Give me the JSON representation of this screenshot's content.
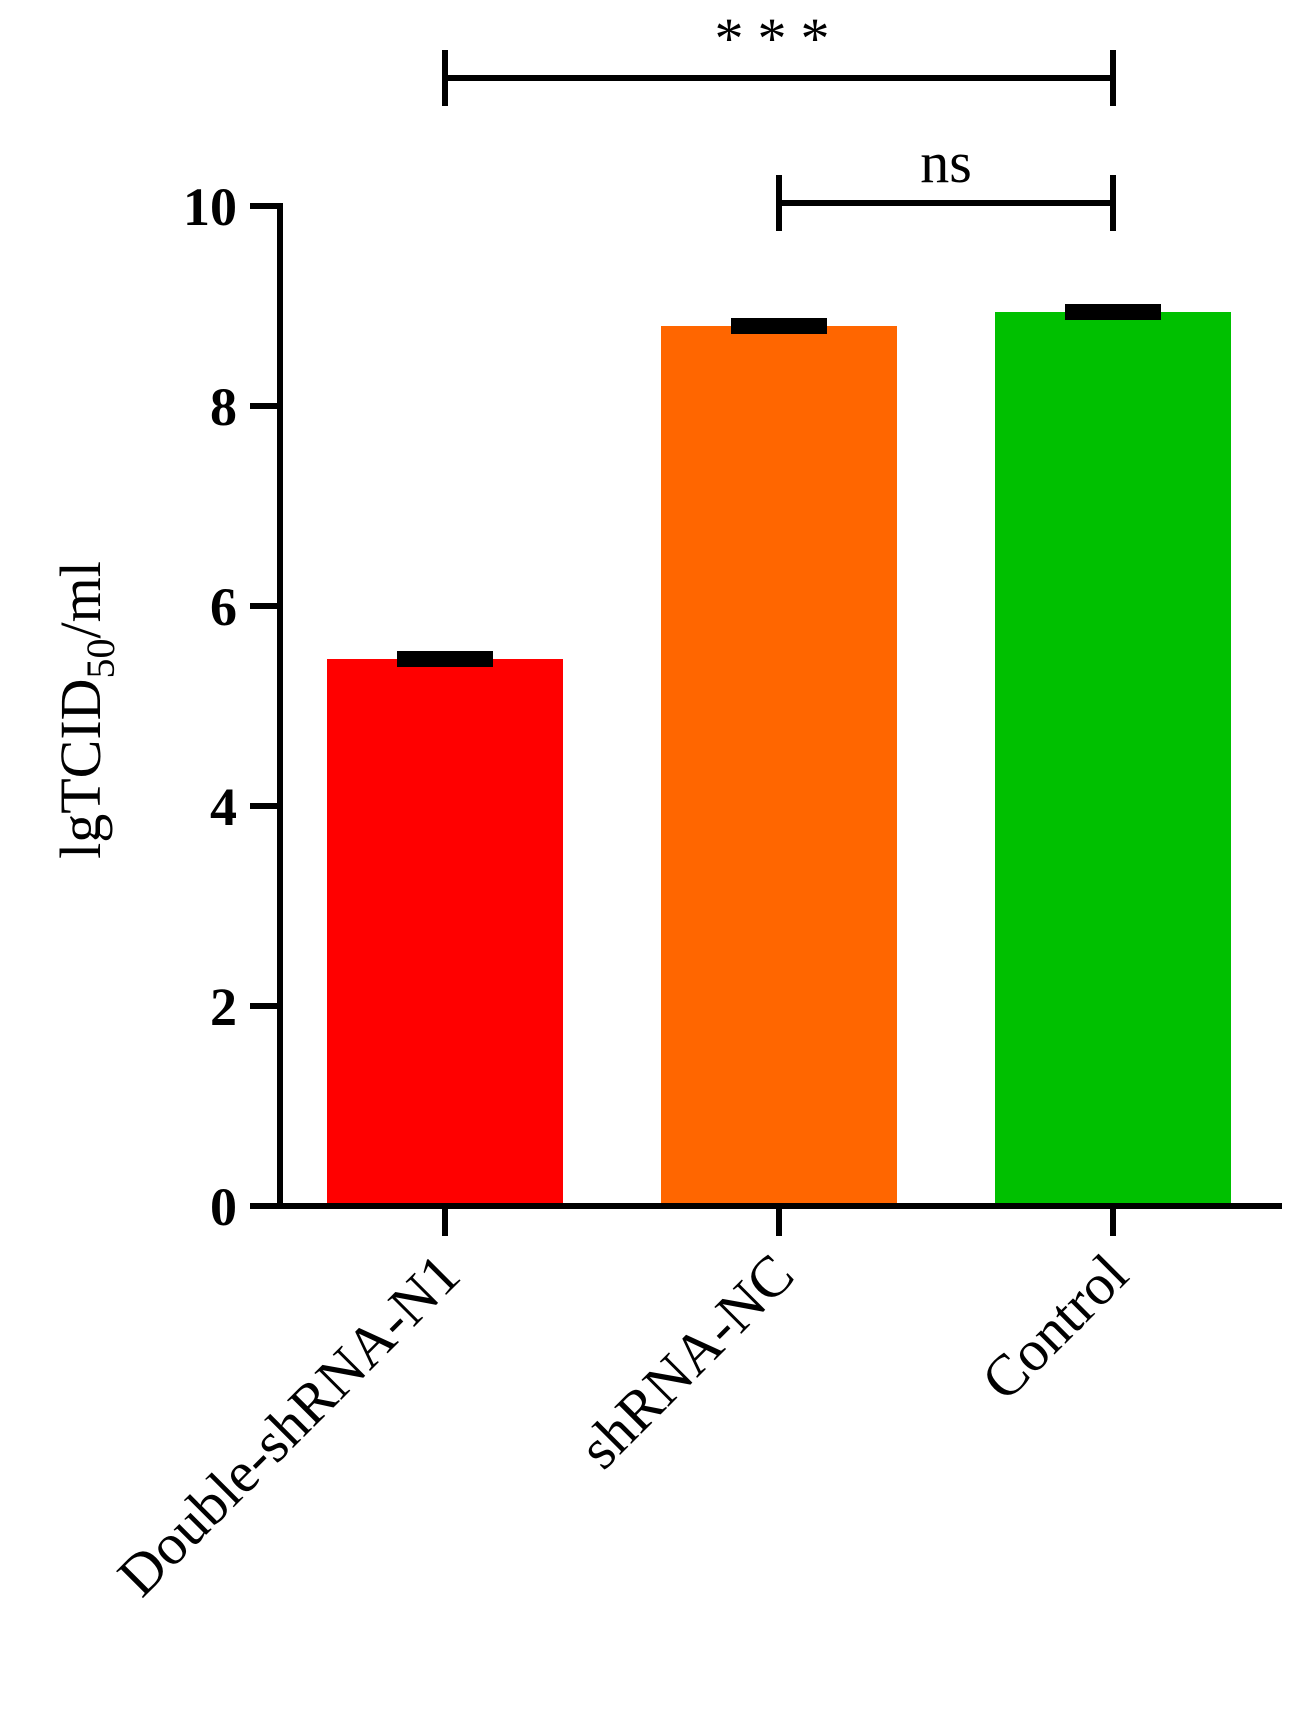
{
  "chart_data": {
    "type": "bar",
    "categories": [
      "Double-shRNA-N1",
      "shRNA-NC",
      "Control"
    ],
    "values": [
      5.47,
      8.8,
      8.94
    ],
    "errors": [
      0.05,
      0.05,
      0.05
    ],
    "colors": [
      "#ff0000",
      "#ff6600",
      "#00c000"
    ],
    "ylabel_main": "lgTCID",
    "ylabel_sub": "50",
    "ylabel_suffix": "/ml",
    "xlabel": "",
    "ylim": [
      0,
      10
    ],
    "yticks": [
      "0",
      "2",
      "4",
      "6",
      "8",
      "10"
    ],
    "grid": false,
    "significance": [
      {
        "from": 0,
        "to": 2,
        "label": "***"
      },
      {
        "from": 1,
        "to": 2,
        "label": "ns"
      }
    ]
  }
}
